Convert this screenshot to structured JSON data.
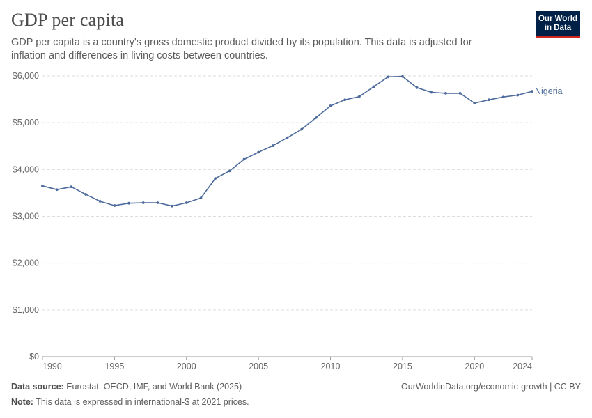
{
  "header": {
    "title": "GDP per capita",
    "subtitle": "GDP per capita is a country's gross domestic product divided by its population. This data is adjusted for inflation and differences in living costs between countries."
  },
  "logo": {
    "line1": "Our World",
    "line2": "in Data",
    "bg_color": "#002147",
    "accent_color": "#ce261e"
  },
  "footer": {
    "source_label": "Data source:",
    "source_text": " Eurostat, OECD, IMF, and World Bank (2025)",
    "credit": "OurWorldinData.org/economic-growth | CC BY",
    "note_label": "Note:",
    "note_text": " This data is expressed in international-$ at 2021 prices."
  },
  "chart_data": {
    "type": "line",
    "xlim": [
      1990,
      2024
    ],
    "ylim": [
      0,
      6000
    ],
    "x_ticks": [
      1990,
      1995,
      2000,
      2005,
      2010,
      2015,
      2020,
      2024
    ],
    "x_tick_labels": [
      "1990",
      "1995",
      "2000",
      "2005",
      "2010",
      "2015",
      "2020",
      "2024"
    ],
    "y_ticks": [
      0,
      1000,
      2000,
      3000,
      4000,
      5000,
      6000
    ],
    "y_tick_labels": [
      "$0",
      "$1,000",
      "$2,000",
      "$3,000",
      "$4,000",
      "$5,000",
      "$6,000"
    ],
    "grid": true,
    "series": [
      {
        "name": "Nigeria",
        "color": "#4c6a9c",
        "x": [
          1990,
          1991,
          1992,
          1993,
          1994,
          1995,
          1996,
          1997,
          1998,
          1999,
          2000,
          2001,
          2002,
          2003,
          2004,
          2005,
          2006,
          2007,
          2008,
          2009,
          2010,
          2011,
          2012,
          2013,
          2014,
          2015,
          2016,
          2017,
          2018,
          2019,
          2020,
          2021,
          2022,
          2023,
          2024
        ],
        "values": [
          3650,
          3570,
          3630,
          3470,
          3320,
          3230,
          3280,
          3290,
          3290,
          3220,
          3290,
          3390,
          3810,
          3970,
          4220,
          4370,
          4510,
          4680,
          4860,
          5110,
          5360,
          5490,
          5560,
          5770,
          5980,
          5990,
          5750,
          5650,
          5630,
          5630,
          5420,
          5490,
          5550,
          5590,
          5670
        ]
      }
    ]
  }
}
